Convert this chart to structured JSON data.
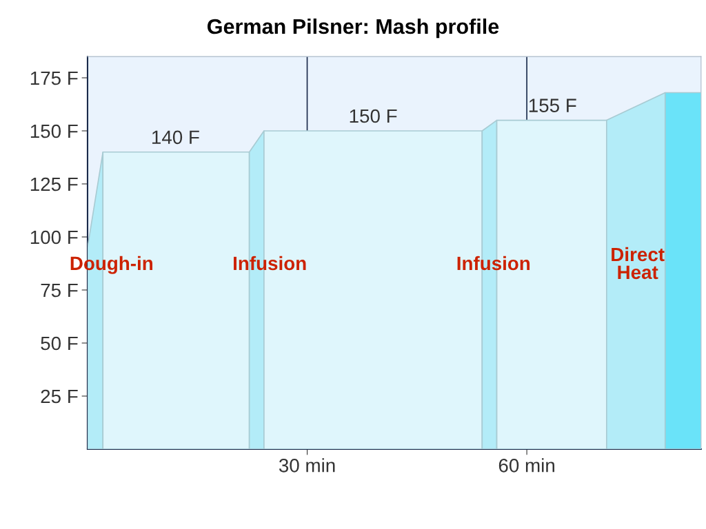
{
  "chart_data": {
    "type": "area",
    "title": "German Pilsner: Mash profile",
    "series": [
      {
        "x": [
          0,
          2.1
        ],
        "values": [
          95,
          140
        ],
        "color": "#b3ecf8"
      },
      {
        "x": [
          2.1,
          22.1
        ],
        "values": [
          140,
          140
        ],
        "color": "#dff6fc"
      },
      {
        "x": [
          22.1,
          24.1
        ],
        "values": [
          140,
          150
        ],
        "color": "#b3ecf8"
      },
      {
        "x": [
          24.1,
          53.9
        ],
        "values": [
          150,
          150
        ],
        "color": "#dff6fc"
      },
      {
        "x": [
          53.9,
          55.9
        ],
        "values": [
          150,
          155
        ],
        "color": "#b3ecf8"
      },
      {
        "x": [
          55.9,
          70.9
        ],
        "values": [
          155,
          155
        ],
        "color": "#dff6fc"
      },
      {
        "x": [
          70.9,
          78.9
        ],
        "values": [
          155,
          168
        ],
        "color": "#b3ecf8"
      },
      {
        "x": [
          78.9,
          83.8
        ],
        "values": [
          168,
          168
        ],
        "color": "#6ae3f9"
      }
    ],
    "xlim": [
      0,
      83.8
    ],
    "ylim": [
      0,
      185
    ],
    "xticks": [
      {
        "value": 30,
        "label": "30 min"
      },
      {
        "value": 60,
        "label": "60 min"
      }
    ],
    "yticks": [
      {
        "value": 25,
        "label": "25 F"
      },
      {
        "value": 50,
        "label": "50 F"
      },
      {
        "value": 75,
        "label": "75 F"
      },
      {
        "value": 100,
        "label": "100 F"
      },
      {
        "value": 125,
        "label": "125 F"
      },
      {
        "value": 150,
        "label": "150 F"
      },
      {
        "value": 175,
        "label": "175 F"
      }
    ],
    "grid": "x",
    "legend": false,
    "annotations": [
      {
        "text": "140 F",
        "x": 12,
        "y": 140
      },
      {
        "text": "150 F",
        "x": 39,
        "y": 150
      },
      {
        "text": "155 F",
        "x": 63.5,
        "y": 155
      },
      "Dough-in",
      "Infusion",
      "Infusion",
      "Direct\nHeat"
    ]
  }
}
